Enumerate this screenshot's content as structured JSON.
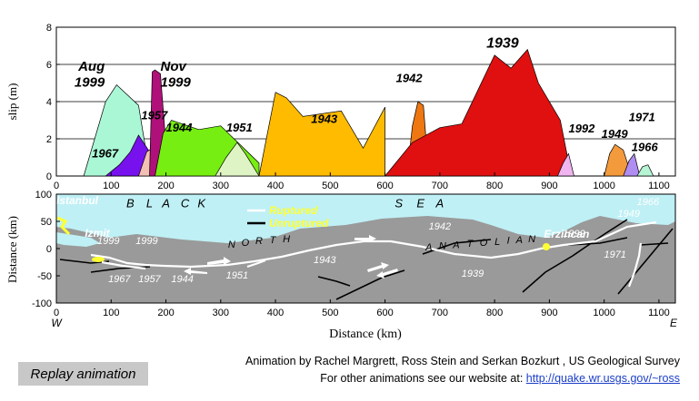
{
  "colors": {
    "sea": "#bff0f5",
    "land": "#9a9a9a",
    "ruptured": "#ffffff",
    "unruptured": "#000000",
    "legend_text": "#ffff33",
    "link": "#1a3ec8",
    "replay_bg": "#c8c8c8"
  },
  "chart_data": [
    {
      "type": "area",
      "xlim": [
        0,
        1130
      ],
      "ylim": [
        0,
        8
      ],
      "ylabel": "slip (m)",
      "yticks": [
        0,
        2,
        4,
        6,
        8
      ],
      "xticks": [
        0,
        100,
        200,
        300,
        400,
        500,
        600,
        700,
        800,
        900,
        1000,
        1100
      ],
      "grid": "horizontal",
      "series": [
        {
          "name": "1999 Aug",
          "color": "#aaf7d6",
          "x": [
            50,
            90,
            110,
            150,
            170,
            190,
            200
          ],
          "y": [
            0,
            4.0,
            4.9,
            3.8,
            0.2,
            3.7,
            0
          ]
        },
        {
          "name": "1967",
          "color": "#7711ee",
          "x": [
            90,
            115,
            135,
            150,
            170,
            180
          ],
          "y": [
            0,
            0.6,
            1.3,
            2.2,
            1.3,
            0
          ]
        },
        {
          "name": "1957",
          "color": "#f4c0b4",
          "x": [
            150,
            165,
            175,
            190,
            200
          ],
          "y": [
            0,
            1.3,
            1.5,
            1.0,
            0
          ]
        },
        {
          "name": "1999 Nov",
          "color": "#b0107a",
          "x": [
            170,
            175,
            180,
            190,
            198,
            200
          ],
          "y": [
            0,
            5.6,
            5.7,
            5.5,
            2.5,
            0
          ]
        },
        {
          "name": "1944",
          "color": "#77ee11",
          "x": [
            180,
            195,
            210,
            260,
            300,
            370,
            370
          ],
          "y": [
            0,
            2.3,
            3.0,
            2.5,
            2.7,
            0.7,
            0
          ]
        },
        {
          "name": "1951",
          "color": "#dff4c4",
          "x": [
            290,
            310,
            330,
            345,
            370
          ],
          "y": [
            0,
            1.0,
            1.8,
            1.2,
            0
          ]
        },
        {
          "name": "1943",
          "color": "#ffbb00",
          "x": [
            370,
            380,
            400,
            420,
            450,
            520,
            560,
            600,
            600
          ],
          "y": [
            0,
            1.5,
            4.5,
            4.2,
            3.2,
            3.5,
            1.5,
            3.7,
            0
          ]
        },
        {
          "name": "1942",
          "color": "#ee7711",
          "x": [
            640,
            650,
            660,
            670,
            680
          ],
          "y": [
            0,
            2.7,
            4.0,
            3.8,
            0
          ]
        },
        {
          "name": "1939",
          "color": "#e01010",
          "x": [
            600,
            650,
            700,
            740,
            800,
            830,
            860,
            880,
            920,
            940
          ],
          "y": [
            0,
            1.8,
            2.6,
            2.8,
            6.5,
            5.8,
            6.8,
            5.0,
            3.0,
            0
          ]
        },
        {
          "name": "1992",
          "color": "#f0b4f0",
          "x": [
            915,
            925,
            935,
            945
          ],
          "y": [
            0,
            0.7,
            1.2,
            0
          ]
        },
        {
          "name": "1949",
          "color": "#f39a3c",
          "x": [
            1000,
            1010,
            1020,
            1035,
            1050
          ],
          "y": [
            0,
            1.2,
            1.7,
            1.4,
            0
          ]
        },
        {
          "name": "1971",
          "color": "#b08df0",
          "x": [
            1035,
            1045,
            1055,
            1065
          ],
          "y": [
            0,
            0.8,
            1.2,
            0
          ]
        },
        {
          "name": "1966",
          "color": "#b6f4d4",
          "x": [
            1060,
            1070,
            1080,
            1090
          ],
          "y": [
            0,
            0.5,
            0.6,
            0
          ]
        }
      ],
      "labels": [
        {
          "text": "Aug",
          "x": 40,
          "y": 5.65
        },
        {
          "text": "1999",
          "x": 33,
          "y": 4.8
        },
        {
          "text": "Nov",
          "x": 190,
          "y": 5.65
        },
        {
          "text": "1999",
          "x": 190,
          "y": 4.8
        },
        {
          "text": "1957",
          "x": 155,
          "y": 3.05
        },
        {
          "text": "1944",
          "x": 200,
          "y": 2.4
        },
        {
          "text": "1951",
          "x": 310,
          "y": 2.4
        },
        {
          "text": "1967",
          "x": 65,
          "y": 1.0
        },
        {
          "text": "1943",
          "x": 465,
          "y": 2.85
        },
        {
          "text": "1942",
          "x": 620,
          "y": 5.05
        },
        {
          "text": "1939",
          "x": 785,
          "y": 6.9
        },
        {
          "text": "1992",
          "x": 935,
          "y": 2.35
        },
        {
          "text": "1949",
          "x": 995,
          "y": 2.05
        },
        {
          "text": "1971",
          "x": 1045,
          "y": 2.95
        },
        {
          "text": "1966",
          "x": 1050,
          "y": 1.35
        }
      ]
    },
    {
      "type": "map",
      "xlim": [
        0,
        1130
      ],
      "ylim": [
        -100,
        100
      ],
      "xlabel": "Distance (km)",
      "ylabel": "Distance (km)",
      "yticks": [
        -100,
        -50,
        0,
        50,
        100
      ],
      "xticks": [
        0,
        100,
        200,
        300,
        400,
        500,
        600,
        700,
        800,
        900,
        1000,
        1100
      ],
      "west_label": "W",
      "east_label": "E",
      "legend": [
        {
          "label": "Ruptured",
          "color": "#ffffff"
        },
        {
          "label": "Unruptured",
          "color": "#000000"
        }
      ],
      "places": [
        {
          "text": "Istanbul",
          "x": 0,
          "y": 82
        },
        {
          "text": "Izmit",
          "x": 52,
          "y": 22
        },
        {
          "text": "Erzincan",
          "x": 890,
          "y": 20
        }
      ],
      "sea_words": [
        {
          "text": "B",
          "x": 135,
          "y": 76
        },
        {
          "text": "L",
          "x": 170,
          "y": 76
        },
        {
          "text": "A",
          "x": 200,
          "y": 76
        },
        {
          "text": "C",
          "x": 235,
          "y": 76
        },
        {
          "text": "K",
          "x": 265,
          "y": 76
        },
        {
          "text": "S",
          "x": 625,
          "y": 76
        },
        {
          "text": "E",
          "x": 665,
          "y": 76
        },
        {
          "text": "A",
          "x": 700,
          "y": 76
        }
      ],
      "land_words": [
        {
          "text": "N",
          "x": 320,
          "y": 2
        },
        {
          "text": "O",
          "x": 345,
          "y": 5
        },
        {
          "text": "R",
          "x": 370,
          "y": 8
        },
        {
          "text": "T",
          "x": 395,
          "y": 10
        },
        {
          "text": "H",
          "x": 420,
          "y": 12
        },
        {
          "text": "A",
          "x": 680,
          "y": -3
        },
        {
          "text": "N",
          "x": 705,
          "y": -1
        },
        {
          "text": "A",
          "x": 730,
          "y": 1
        },
        {
          "text": "T",
          "x": 755,
          "y": 3
        },
        {
          "text": "O",
          "x": 780,
          "y": 5
        },
        {
          "text": "L",
          "x": 805,
          "y": 7
        },
        {
          "text": "I",
          "x": 825,
          "y": 9
        },
        {
          "text": "A",
          "x": 845,
          "y": 10
        },
        {
          "text": "N",
          "x": 868,
          "y": 12
        }
      ],
      "event_labels": [
        {
          "text": "1999",
          "x": 95,
          "y": 8
        },
        {
          "text": "1999",
          "x": 165,
          "y": 8
        },
        {
          "text": "1967",
          "x": 115,
          "y": -62
        },
        {
          "text": "1957",
          "x": 170,
          "y": -62
        },
        {
          "text": "1944",
          "x": 230,
          "y": -62
        },
        {
          "text": "1951",
          "x": 330,
          "y": -55
        },
        {
          "text": "1943",
          "x": 490,
          "y": -27
        },
        {
          "text": "1942",
          "x": 700,
          "y": 35
        },
        {
          "text": "1939",
          "x": 760,
          "y": -52
        },
        {
          "text": "1992",
          "x": 945,
          "y": 22
        },
        {
          "text": "1971",
          "x": 1020,
          "y": -17
        },
        {
          "text": "1949",
          "x": 1045,
          "y": 58
        },
        {
          "text": "1966",
          "x": 1080,
          "y": 80
        }
      ]
    }
  ],
  "replay_label": "Replay animation",
  "credits": {
    "line1": "Animation by Rachel Margrett, Ross Stein and Serkan Bozkurt , US Geological Survey",
    "line2_prefix": "For other animations see our website at:",
    "link": "http://quake.wr.usgs.gov/~ross"
  }
}
